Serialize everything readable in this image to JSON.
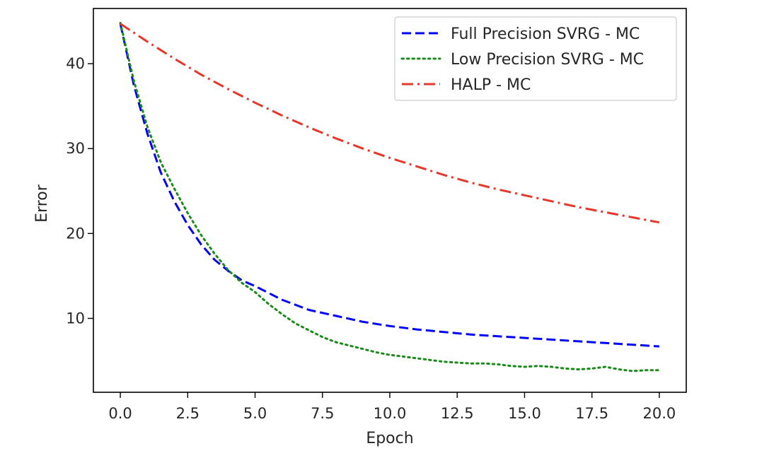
{
  "chart_data": {
    "type": "line",
    "title": "",
    "xlabel": "Epoch",
    "ylabel": "Error",
    "xlim": [
      -1,
      21
    ],
    "ylim": [
      1.3,
      46.5
    ],
    "xticks": [
      0,
      2.5,
      5,
      7.5,
      10,
      12.5,
      15,
      17.5,
      20
    ],
    "xtick_labels": [
      "0.0",
      "2.5",
      "5.0",
      "7.5",
      "10.0",
      "12.5",
      "15.0",
      "17.5",
      "20.0"
    ],
    "yticks": [
      10,
      20,
      30,
      40
    ],
    "ytick_labels": [
      "10",
      "20",
      "30",
      "40"
    ],
    "grid": false,
    "legend_position": "top-right",
    "series": [
      {
        "name": "Full Precision SVRG - MC",
        "color": "#0000ff",
        "style": "dashed",
        "x": [
          0,
          0.5,
          1,
          1.5,
          2,
          2.5,
          3,
          3.5,
          4,
          4.5,
          5,
          6,
          7,
          8,
          9,
          10,
          11,
          12,
          13,
          14,
          15,
          16,
          17,
          18,
          19,
          20
        ],
        "y": [
          44.7,
          37.5,
          31.8,
          27.2,
          23.8,
          21.0,
          18.7,
          16.9,
          15.6,
          14.5,
          13.8,
          12.2,
          11.0,
          10.3,
          9.6,
          9.1,
          8.7,
          8.4,
          8.1,
          7.9,
          7.7,
          7.5,
          7.3,
          7.1,
          6.9,
          6.7
        ]
      },
      {
        "name": "Low Precision SVRG - MC",
        "color": "#1a8a1a",
        "style": "dotted",
        "x": [
          0,
          0.5,
          1,
          1.5,
          2,
          2.5,
          3,
          3.5,
          4,
          4.5,
          5,
          5.5,
          6,
          6.5,
          7,
          7.5,
          8,
          8.5,
          9,
          9.5,
          10,
          11,
          12,
          12.5,
          13,
          13.5,
          14,
          14.5,
          15,
          15.5,
          16,
          16.5,
          17,
          17.5,
          18,
          18.5,
          19,
          19.5,
          20
        ],
        "y": [
          44.8,
          38.0,
          32.6,
          28.4,
          25.3,
          22.4,
          19.8,
          17.6,
          15.7,
          14.2,
          13.1,
          11.7,
          10.5,
          9.4,
          8.6,
          7.8,
          7.2,
          6.8,
          6.4,
          6.0,
          5.7,
          5.3,
          4.9,
          4.8,
          4.7,
          4.7,
          4.6,
          4.4,
          4.3,
          4.4,
          4.3,
          4.1,
          4.0,
          4.1,
          4.3,
          4.0,
          3.8,
          3.9,
          3.9
        ]
      },
      {
        "name": "HALP - MC",
        "color": "#e8372a",
        "style": "dashdot",
        "x": [
          0,
          1,
          2,
          3,
          4,
          5,
          6,
          7,
          8,
          9,
          10,
          11,
          12,
          13,
          14,
          15,
          16,
          17,
          18,
          19,
          20
        ],
        "y": [
          44.7,
          42.6,
          40.6,
          38.7,
          37.0,
          35.4,
          33.9,
          32.5,
          31.2,
          30.0,
          28.9,
          27.9,
          26.9,
          26.0,
          25.2,
          24.5,
          23.8,
          23.1,
          22.5,
          21.9,
          21.3
        ]
      }
    ]
  }
}
